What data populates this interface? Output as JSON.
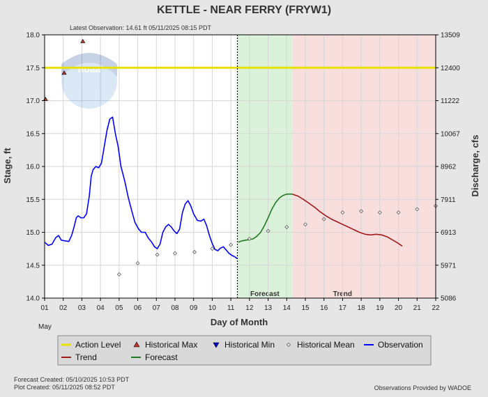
{
  "chart_data": {
    "type": "line",
    "title": "KETTLE - NEAR FERRY  (FRYW1)",
    "latest_observation": "Latest Observation:  14.61 ft 05/11/2025 08:15 PDT",
    "xlabel": "Day of Month",
    "month_label": "May",
    "ylabel_left": "Stage, ft",
    "ylabel_right": "Discharge, cfs",
    "xlim": [
      1,
      22
    ],
    "ylim": [
      14.0,
      18.0
    ],
    "x_ticks": [
      "01",
      "02",
      "03",
      "04",
      "05",
      "06",
      "07",
      "08",
      "09",
      "10",
      "11",
      "12",
      "13",
      "14",
      "15",
      "16",
      "17",
      "18",
      "19",
      "20",
      "21",
      "22"
    ],
    "y_ticks_left": [
      "14.0",
      "14.5",
      "15.0",
      "15.5",
      "16.0",
      "16.5",
      "17.0",
      "17.5",
      "18.0"
    ],
    "y_ticks_right": [
      {
        "stage": 14.0,
        "label": "5086"
      },
      {
        "stage": 14.5,
        "label": "5971"
      },
      {
        "stage": 15.0,
        "label": "6913"
      },
      {
        "stage": 15.5,
        "label": "7911"
      },
      {
        "stage": 16.0,
        "label": "8962"
      },
      {
        "stage": 16.5,
        "label": "10067"
      },
      {
        "stage": 17.0,
        "label": "11222"
      },
      {
        "stage": 17.5,
        "label": "12400"
      },
      {
        "stage": 18.0,
        "label": "13509"
      }
    ],
    "action_level": 17.5,
    "observation_end_x": 11.35,
    "forecast_zone": {
      "label": "Forecast",
      "x": [
        11.35,
        14.3
      ]
    },
    "trend_zone": {
      "label": "Trend",
      "x": [
        14.3,
        22.0
      ]
    },
    "series": {
      "observation": [
        [
          1.0,
          14.85
        ],
        [
          1.2,
          14.8
        ],
        [
          1.4,
          14.82
        ],
        [
          1.6,
          14.92
        ],
        [
          1.75,
          14.95
        ],
        [
          1.9,
          14.88
        ],
        [
          2.1,
          14.87
        ],
        [
          2.3,
          14.86
        ],
        [
          2.45,
          14.95
        ],
        [
          2.6,
          15.1
        ],
        [
          2.7,
          15.22
        ],
        [
          2.8,
          15.25
        ],
        [
          2.95,
          15.22
        ],
        [
          3.1,
          15.22
        ],
        [
          3.25,
          15.28
        ],
        [
          3.4,
          15.55
        ],
        [
          3.5,
          15.85
        ],
        [
          3.6,
          15.95
        ],
        [
          3.75,
          16.0
        ],
        [
          3.9,
          15.98
        ],
        [
          4.05,
          16.05
        ],
        [
          4.2,
          16.3
        ],
        [
          4.35,
          16.55
        ],
        [
          4.5,
          16.72
        ],
        [
          4.65,
          16.75
        ],
        [
          4.8,
          16.5
        ],
        [
          4.95,
          16.3
        ],
        [
          5.1,
          16.0
        ],
        [
          5.3,
          15.78
        ],
        [
          5.5,
          15.52
        ],
        [
          5.7,
          15.3
        ],
        [
          5.85,
          15.15
        ],
        [
          6.05,
          15.05
        ],
        [
          6.2,
          15.0
        ],
        [
          6.4,
          15.0
        ],
        [
          6.55,
          14.92
        ],
        [
          6.75,
          14.85
        ],
        [
          6.9,
          14.78
        ],
        [
          7.05,
          14.75
        ],
        [
          7.2,
          14.82
        ],
        [
          7.35,
          15.0
        ],
        [
          7.5,
          15.08
        ],
        [
          7.65,
          15.12
        ],
        [
          7.8,
          15.08
        ],
        [
          7.95,
          15.02
        ],
        [
          8.1,
          14.98
        ],
        [
          8.25,
          15.05
        ],
        [
          8.4,
          15.3
        ],
        [
          8.55,
          15.43
        ],
        [
          8.7,
          15.48
        ],
        [
          8.85,
          15.4
        ],
        [
          9.0,
          15.28
        ],
        [
          9.2,
          15.18
        ],
        [
          9.4,
          15.17
        ],
        [
          9.55,
          15.2
        ],
        [
          9.7,
          15.1
        ],
        [
          9.85,
          14.95
        ],
        [
          10.0,
          14.83
        ],
        [
          10.15,
          14.74
        ],
        [
          10.3,
          14.72
        ],
        [
          10.45,
          14.76
        ],
        [
          10.6,
          14.78
        ],
        [
          10.75,
          14.73
        ],
        [
          10.9,
          14.68
        ],
        [
          11.05,
          14.65
        ],
        [
          11.2,
          14.63
        ],
        [
          11.35,
          14.6
        ]
      ],
      "forecast": [
        [
          11.4,
          14.85
        ],
        [
          11.6,
          14.87
        ],
        [
          11.8,
          14.88
        ],
        [
          12.0,
          14.89
        ],
        [
          12.2,
          14.9
        ],
        [
          12.4,
          14.94
        ],
        [
          12.6,
          15.0
        ],
        [
          12.8,
          15.1
        ],
        [
          13.0,
          15.22
        ],
        [
          13.2,
          15.35
        ],
        [
          13.4,
          15.45
        ],
        [
          13.6,
          15.52
        ],
        [
          13.8,
          15.56
        ],
        [
          14.0,
          15.58
        ],
        [
          14.3,
          15.58
        ]
      ],
      "trend": [
        [
          14.3,
          15.58
        ],
        [
          14.6,
          15.55
        ],
        [
          14.9,
          15.5
        ],
        [
          15.2,
          15.44
        ],
        [
          15.5,
          15.38
        ],
        [
          15.8,
          15.31
        ],
        [
          16.1,
          15.25
        ],
        [
          16.4,
          15.2
        ],
        [
          16.7,
          15.16
        ],
        [
          17.0,
          15.12
        ],
        [
          17.3,
          15.08
        ],
        [
          17.6,
          15.04
        ],
        [
          17.9,
          15.0
        ],
        [
          18.2,
          14.97
        ],
        [
          18.5,
          14.96
        ],
        [
          18.8,
          14.97
        ],
        [
          19.1,
          14.96
        ],
        [
          19.4,
          14.93
        ],
        [
          19.7,
          14.88
        ],
        [
          20.0,
          14.83
        ],
        [
          20.2,
          14.79
        ]
      ],
      "historical_mean": [
        [
          5.0,
          14.36
        ],
        [
          6.0,
          14.53
        ],
        [
          7.05,
          14.66
        ],
        [
          8.0,
          14.68
        ],
        [
          9.05,
          14.7
        ],
        [
          10.0,
          14.75
        ],
        [
          11.0,
          14.81
        ],
        [
          12.0,
          14.9
        ],
        [
          13.0,
          15.02
        ],
        [
          14.0,
          15.08
        ],
        [
          15.0,
          15.12
        ],
        [
          16.0,
          15.2
        ],
        [
          17.0,
          15.3
        ],
        [
          18.0,
          15.32
        ],
        [
          19.0,
          15.3
        ],
        [
          20.0,
          15.3
        ],
        [
          21.0,
          15.35
        ],
        [
          22.0,
          15.4
        ]
      ],
      "historical_max": [
        [
          1.05,
          17.02
        ],
        [
          2.05,
          17.42
        ],
        [
          3.05,
          17.9
        ]
      ]
    },
    "legend": {
      "placement": "bottom",
      "items": [
        {
          "key": "action",
          "label": "Action Level",
          "color": "#e8e000"
        },
        {
          "key": "hmax",
          "label": "Historical Max",
          "color": "#c0392b"
        },
        {
          "key": "hmin",
          "label": "Historical Min",
          "color": "#0000cc"
        },
        {
          "key": "hmean",
          "label": "Historical Mean",
          "color": "#666666"
        },
        {
          "key": "obs",
          "label": "Observation",
          "color": "#0000ff"
        },
        {
          "key": "trend",
          "label": "Trend",
          "color": "#a01818"
        },
        {
          "key": "fcst",
          "label": "Forecast",
          "color": "#1f7a1f"
        }
      ]
    },
    "colors": {
      "observation": "#0000ff",
      "forecast": "#1f7a1f",
      "trend": "#a01818",
      "action_level": "#e8e000",
      "forecast_zone_fill": "#d9f2d9",
      "trend_zone_fill": "#f9dede",
      "plot_bg": "#ffffff",
      "page_bg": "#e6e6e6"
    },
    "grid": true
  },
  "footer": {
    "forecast_created": "Forecast Created: 05/10/2025 10:53 PDT",
    "plot_created": "Plot Created: 05/11/2025 08:52 PDT",
    "provider": "Observations Provided by WADOE"
  },
  "watermark": "noaa"
}
